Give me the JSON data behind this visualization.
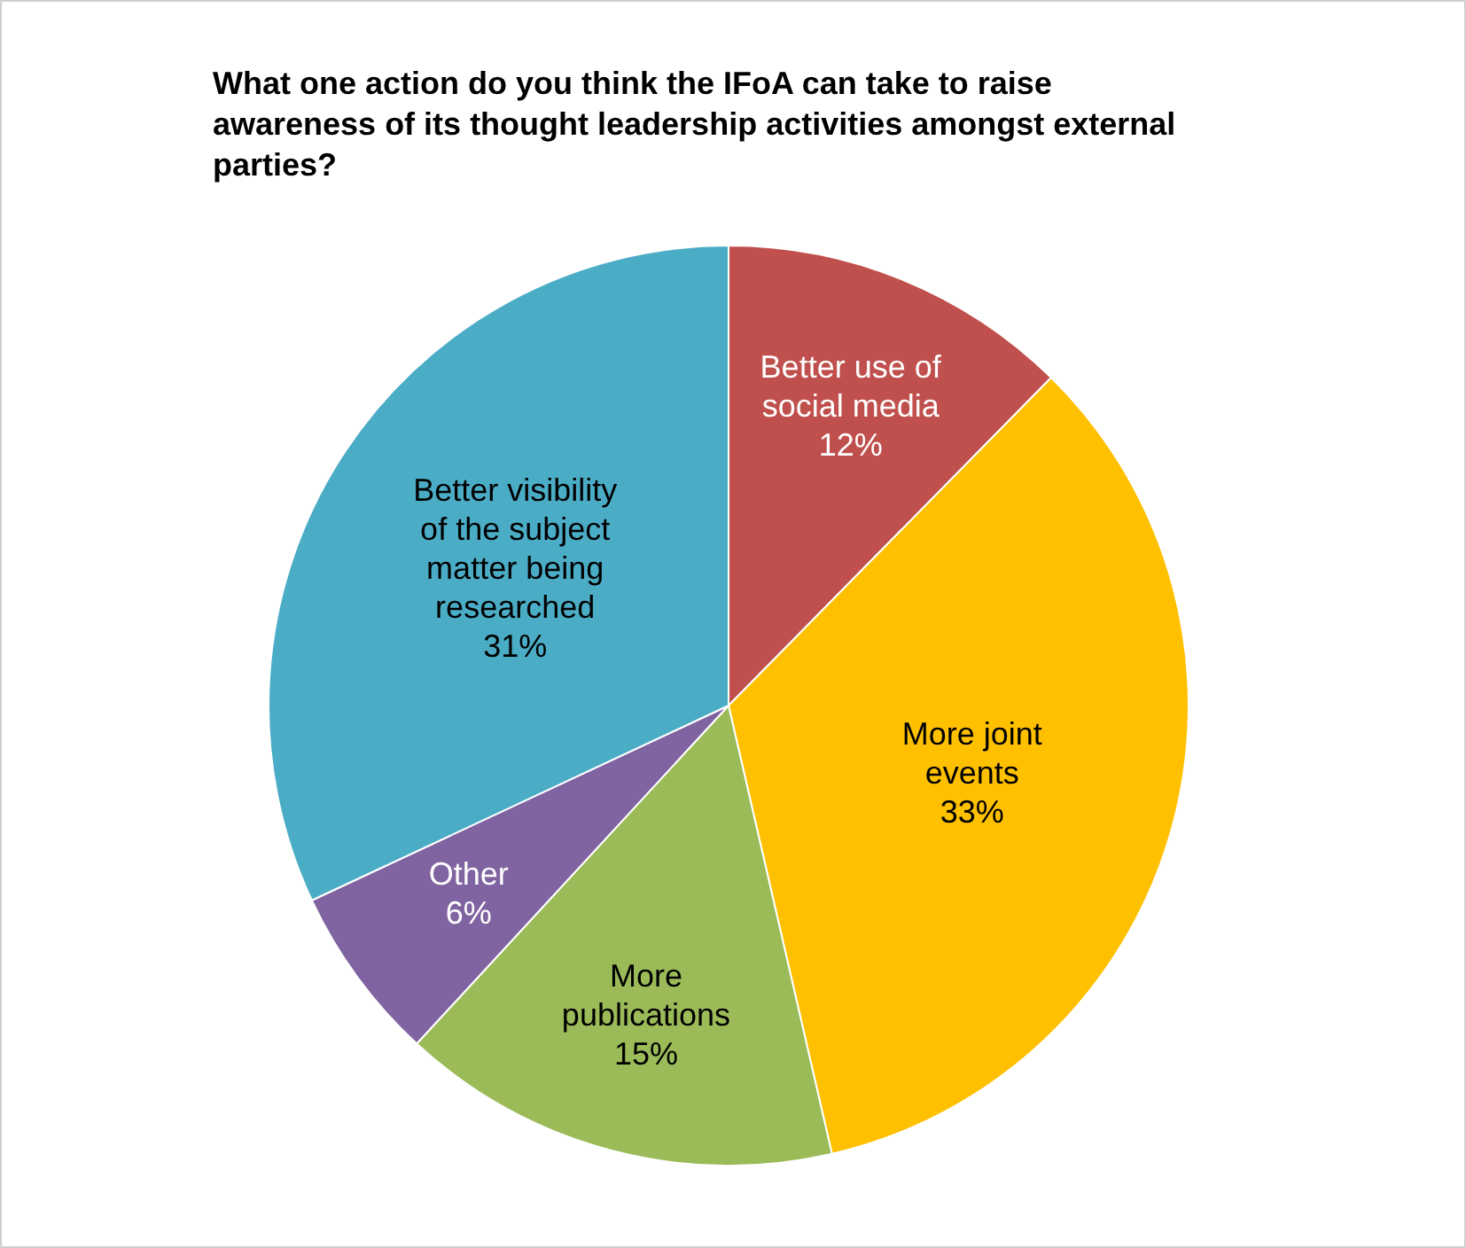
{
  "chart_data": {
    "type": "pie",
    "title": "What one action do you think the IFoA can take to raise awareness of its thought leadership activities amongst external parties?",
    "categories": [
      "Better use of social media",
      "More joint events",
      "More publications",
      "Other",
      "Better visibility of the subject matter being researched"
    ],
    "values": [
      12,
      33,
      15,
      6,
      31
    ],
    "colors": [
      "#c0504d",
      "#ffc000",
      "#9bbb59",
      "#8064a2",
      "#4bacc6"
    ],
    "value_labels": [
      "12%",
      "33%",
      "15%",
      "6%",
      "31%"
    ],
    "legend": false
  }
}
